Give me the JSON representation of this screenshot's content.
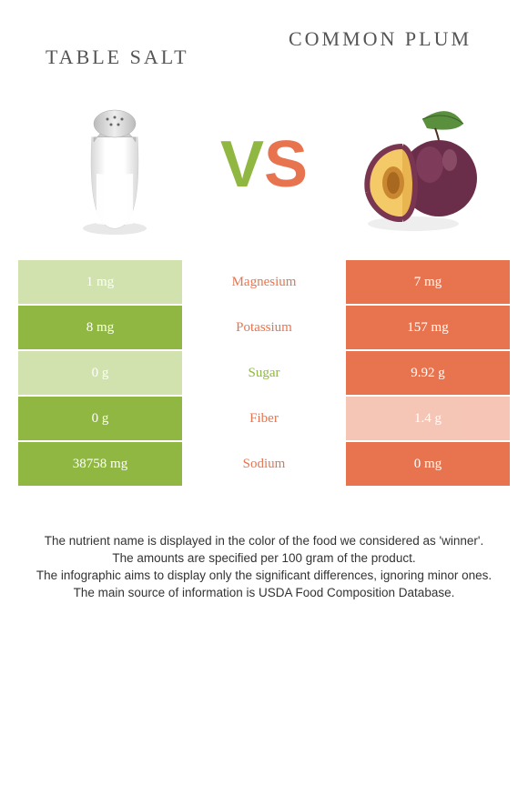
{
  "left_title": "Table salt",
  "right_title": "Common Plum",
  "vs_v": "V",
  "vs_s": "S",
  "colors": {
    "green": "#8fb741",
    "green_faded": "#c9dda1",
    "orange": "#e8744f",
    "orange_faded": "#f4bba9",
    "text": "#555555"
  },
  "rows": [
    {
      "left": "1 mg",
      "label": "Magnesium",
      "right": "7 mg",
      "winner": "orange",
      "left_faded": true,
      "right_faded": false
    },
    {
      "left": "8 mg",
      "label": "Potassium",
      "right": "157 mg",
      "winner": "orange",
      "left_faded": false,
      "right_faded": false
    },
    {
      "left": "0 g",
      "label": "Sugar",
      "right": "9.92 g",
      "winner": "green",
      "left_faded": true,
      "right_faded": false
    },
    {
      "left": "0 g",
      "label": "Fiber",
      "right": "1.4 g",
      "winner": "orange",
      "left_faded": false,
      "right_faded": true
    },
    {
      "left": "38758 mg",
      "label": "Sodium",
      "right": "0 mg",
      "winner": "orange",
      "left_faded": false,
      "right_faded": false
    }
  ],
  "footer_lines": [
    "The nutrient name is displayed in the color of the food we considered as 'winner'.",
    "The amounts are specified per 100 gram of the product.",
    "The infographic aims to display only the significant differences, ignoring minor ones.",
    "The main source of information is USDA Food Composition Database."
  ]
}
